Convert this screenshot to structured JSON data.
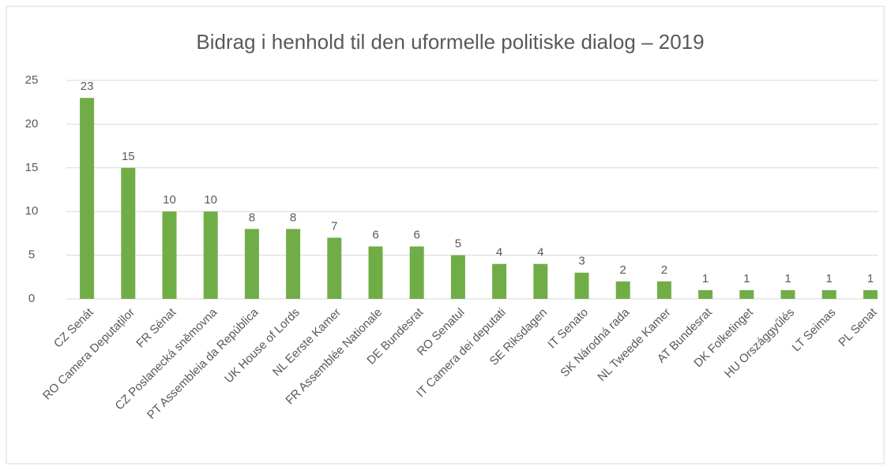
{
  "chart_data": {
    "type": "bar",
    "title": "Bidrag i henhold til den uformelle politiske dialog – 2019",
    "categories": [
      "CZ Senát",
      "RO Camera Deputaților",
      "FR Sénat",
      "CZ Poslanecká sněmovna",
      "PT Assembleia da República",
      "UK House of Lords",
      "NL Eerste Kamer",
      "FR Assemblée Nationale",
      "DE Bundesrat",
      "RO Senatul",
      "IT Camera dei deputati",
      "SE Riksdagen",
      "IT Senato",
      "SK Národná rada",
      "NL Tweede Kamer",
      "AT Bundesrat",
      "DK Folketinget",
      "HU Országgyűlés",
      "LT Seimas",
      "PL Senat"
    ],
    "values": [
      23,
      15,
      10,
      10,
      8,
      8,
      7,
      6,
      6,
      5,
      4,
      4,
      3,
      2,
      2,
      1,
      1,
      1,
      1,
      1
    ],
    "color": "#70ad47",
    "ylim": [
      0,
      25
    ],
    "yticks": [
      0,
      5,
      10,
      15,
      20,
      25
    ],
    "grid": true
  }
}
